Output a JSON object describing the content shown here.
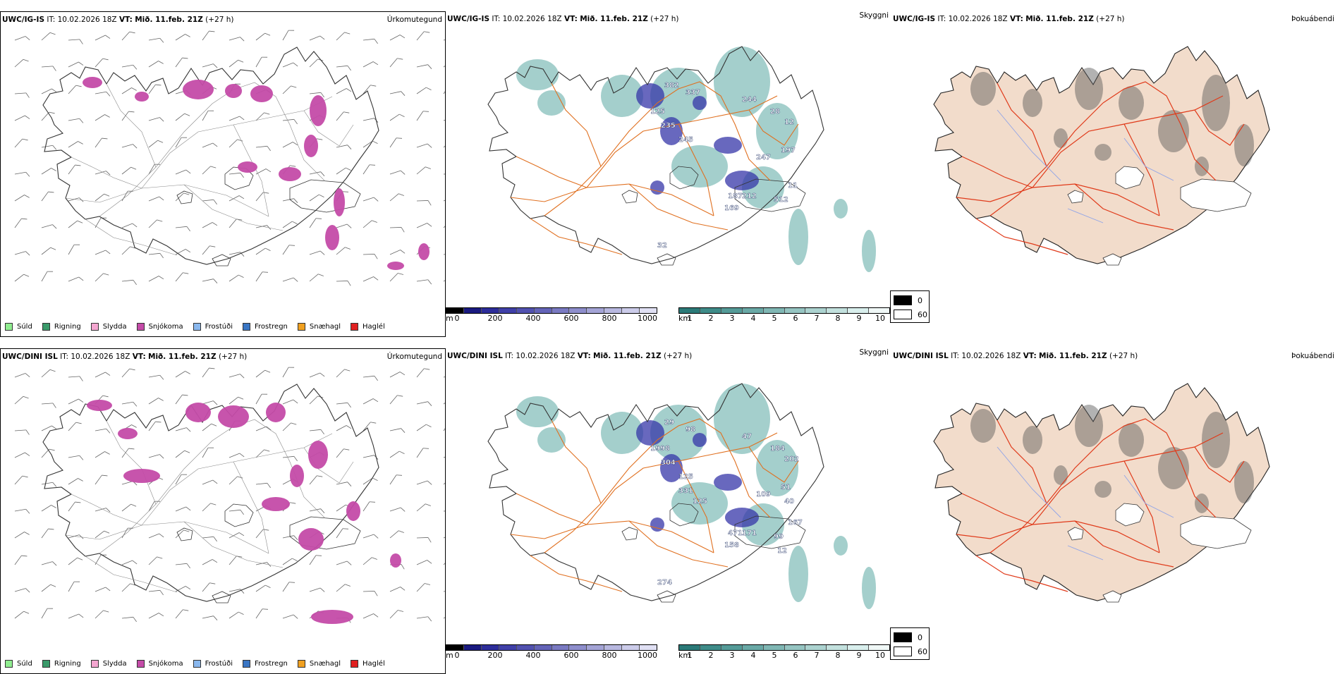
{
  "rows": [
    {
      "model": "UWC/IG-IS",
      "it_label": "IT:",
      "it_value": "10.02.2026 18Z",
      "vt_label": "VT:",
      "vt_value": "Mið. 11.feb. 21Z",
      "lead": "(+27 h)",
      "cloud_labels": [
        "382",
        "337",
        "244",
        "125",
        "235",
        "28",
        "12",
        "245",
        "197",
        "247",
        "187",
        "212",
        "169",
        "512",
        "11",
        "32"
      ]
    },
    {
      "model": "UWC/DINI ISL",
      "it_label": "IT:",
      "it_value": "10.02.2026 18Z",
      "vt_label": "VT:",
      "vt_value": "Mið. 11.feb. 21Z",
      "lead": "(+27 h)",
      "cloud_labels": [
        "29",
        "98",
        "47",
        "1998",
        "304",
        "184",
        "202",
        "125",
        "51",
        "109",
        "471",
        "171",
        "158",
        "99",
        "167",
        "274",
        "331",
        "125",
        "40",
        "12"
      ]
    }
  ],
  "panel_types": {
    "precip": "Úrkomutegund",
    "cloud": "Skyggni",
    "fog": "Þokuábendi"
  },
  "precip_legend": [
    {
      "label": "Súld",
      "color": "#90ee90"
    },
    {
      "label": "Rigning",
      "color": "#3a9a6a"
    },
    {
      "label": "Slydda",
      "color": "#f4a6d0"
    },
    {
      "label": "Snjókoma",
      "color": "#c44ba8"
    },
    {
      "label": "Frostúði",
      "color": "#8ab8ee"
    },
    {
      "label": "Frostregn",
      "color": "#3a76c4"
    },
    {
      "label": "Snæhagl",
      "color": "#f0a020"
    },
    {
      "label": "Haglél",
      "color": "#e02020"
    }
  ],
  "colorbar_ceiling": {
    "unit": "m",
    "ticks": [
      "0",
      "200",
      "400",
      "600",
      "800",
      "1000"
    ],
    "colors": [
      "#000000",
      "#1a1a80",
      "#2d2d9a",
      "#4040a8",
      "#5252b0",
      "#6464b8",
      "#7a7ac2",
      "#8e8ecc",
      "#a4a4d6",
      "#b8b8e0",
      "#ccccea",
      "#e0e0f4"
    ]
  },
  "colorbar_visibility": {
    "unit": "km",
    "ticks": [
      "1",
      "2",
      "3",
      "4",
      "5",
      "6",
      "7",
      "8",
      "9",
      "10"
    ],
    "colors": [
      "#2b7a78",
      "#3f8c89",
      "#559b98",
      "#6aa9a6",
      "#80b7b4",
      "#96c5c2",
      "#acd3d0",
      "#c3e1de",
      "#d9efed",
      "#f0f8f7"
    ]
  },
  "fog_legend": {
    "low": "0",
    "high": "60"
  },
  "colors": {
    "snow": "#c44ba8",
    "visibility": "#5aa8a2",
    "ceiling": "#3535a8",
    "roads": "#e07020",
    "fog_land": "#f2dccb",
    "fog_roads": "#e03a1a"
  }
}
